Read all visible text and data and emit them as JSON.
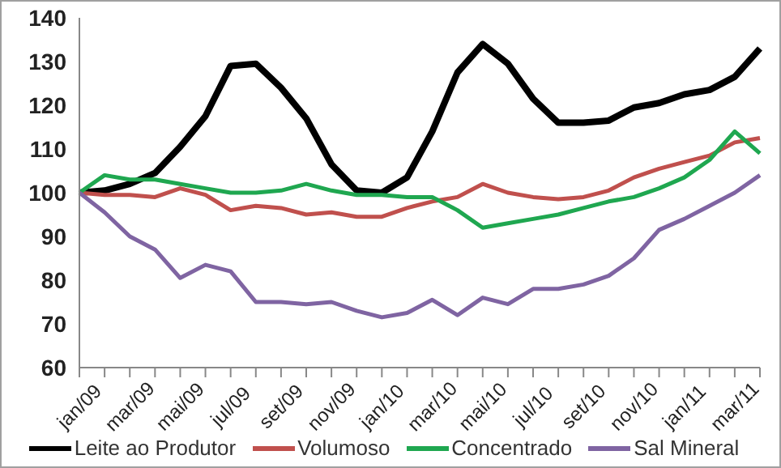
{
  "chart_data": {
    "type": "line",
    "categories": [
      "jan/09",
      null,
      "mar/09",
      null,
      "mai/09",
      null,
      "jul/09",
      null,
      "set/09",
      null,
      "nov/09",
      null,
      "jan/10",
      null,
      "mar/10",
      null,
      "mai/10",
      null,
      "jul/10",
      null,
      "set/10",
      null,
      "nov/10",
      null,
      "jan/11",
      null,
      "mar/11",
      null
    ],
    "series": [
      {
        "name": "Leite ao Produtor",
        "color": "#000000",
        "values": [
          100,
          100.5,
          102,
          104.5,
          110.5,
          117.5,
          129,
          129.5,
          124,
          117,
          106.5,
          100.5,
          100,
          103.5,
          114,
          127.5,
          134,
          129.5,
          121.5,
          116,
          116,
          116.5,
          119.5,
          120.5,
          122.5,
          123.5,
          126.5,
          133
        ]
      },
      {
        "name": "Volumoso",
        "color": "#c0504d",
        "values": [
          100,
          99.5,
          99.5,
          99,
          101,
          99.5,
          96,
          97,
          96.5,
          95,
          95.5,
          94.5,
          94.5,
          96.5,
          98,
          99,
          102,
          100,
          99,
          98.5,
          99,
          100.5,
          103.5,
          105.5,
          107,
          108.5,
          111.5,
          112.5
        ]
      },
      {
        "name": "Concentrado",
        "color": "#1fa750",
        "values": [
          100,
          104,
          103,
          103,
          102,
          101,
          100,
          100,
          100.5,
          102,
          100.5,
          99.5,
          99.5,
          99,
          99,
          96,
          92,
          93,
          94,
          95,
          96.5,
          98,
          99,
          101,
          103.5,
          107.5,
          114,
          109
        ]
      },
      {
        "name": "Sal Mineral",
        "color": "#7f64a2",
        "values": [
          100,
          95.5,
          90,
          87,
          80.5,
          83.5,
          82,
          75,
          75,
          74.5,
          75,
          73,
          71.5,
          72.5,
          75.5,
          72,
          76,
          74.5,
          78,
          78,
          79,
          81,
          85,
          91.5,
          94,
          97,
          100,
          104
        ]
      }
    ],
    "ylim": [
      60,
      140
    ],
    "yticks": [
      60,
      70,
      80,
      90,
      100,
      110,
      120,
      130,
      140
    ],
    "grid": false,
    "legend": "bottom",
    "marker": "none",
    "line_style": "solid"
  }
}
